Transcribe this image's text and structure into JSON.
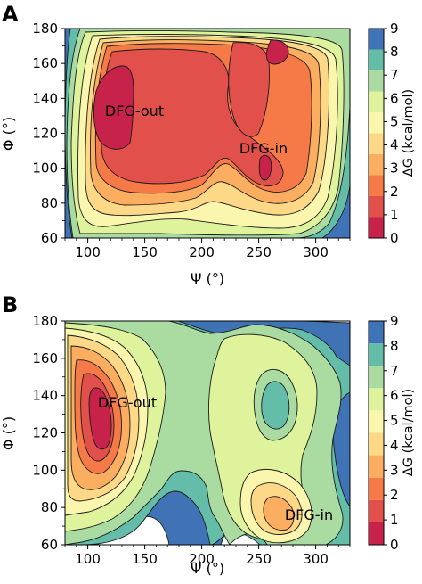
{
  "chart_data": [
    {
      "type": "heatmap",
      "panel_label": "A",
      "xlabel": "Ψ (°)",
      "ylabel": "Φ (°)",
      "xlim": [
        80,
        330
      ],
      "ylim": [
        60,
        180
      ],
      "xticks": [
        100,
        150,
        200,
        250,
        300
      ],
      "yticks": [
        60,
        80,
        100,
        120,
        140,
        160,
        180
      ],
      "colorbar": {
        "label": "ΔG (kcal/mol)",
        "ticks": [
          0,
          1,
          2,
          3,
          4,
          5,
          6,
          7,
          8,
          9
        ],
        "colors": [
          "#c7234a",
          "#e1504b",
          "#f57a48",
          "#fbad60",
          "#fdd886",
          "#fbf6ae",
          "#def39b",
          "#aadca2",
          "#64bda9",
          "#3f73b5"
        ]
      },
      "annotations": [
        {
          "text": "DFG-out",
          "x": 127,
          "y": 126
        },
        {
          "text": "DFG-in",
          "x": 250,
          "y": 114
        }
      ],
      "basins": [
        {
          "x": 125,
          "y": 128,
          "min_dG": 0
        },
        {
          "x": 258,
          "y": 112,
          "min_dG": 0
        },
        {
          "x": 262,
          "y": 168,
          "min_dG": 0
        }
      ],
      "level_count": 10
    },
    {
      "type": "heatmap",
      "panel_label": "B",
      "xlabel": "Ψ (°)",
      "ylabel": "Φ (°)",
      "xlim": [
        80,
        330
      ],
      "ylim": [
        60,
        180
      ],
      "xticks": [
        100,
        150,
        200,
        250,
        300
      ],
      "yticks": [
        60,
        80,
        100,
        120,
        140,
        160,
        180
      ],
      "colorbar": {
        "label": "ΔG (kcal/mol)",
        "ticks": [
          0,
          1,
          2,
          3,
          4,
          5,
          6,
          7,
          8,
          9
        ],
        "colors": [
          "#c7234a",
          "#e1504b",
          "#f57a48",
          "#fbad60",
          "#fdd886",
          "#fbf6ae",
          "#def39b",
          "#aadca2",
          "#64bda9",
          "#3f73b5"
        ]
      },
      "annotations": [
        {
          "text": "DFG-out",
          "x": 122,
          "y": 127
        },
        {
          "text": "DFG-in",
          "x": 282,
          "y": 82
        }
      ],
      "basins": [
        {
          "x": 122,
          "y": 130,
          "min_dG": 0
        },
        {
          "x": 283,
          "y": 79,
          "min_dG": 2
        },
        {
          "x": 262,
          "y": 133,
          "min_dG": 7
        }
      ],
      "level_count": 10
    }
  ]
}
